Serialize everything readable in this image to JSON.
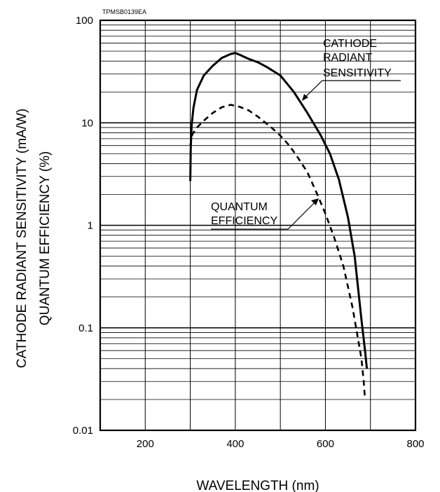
{
  "chart_data": {
    "type": "line",
    "figure_code": "TPMSB0139EA",
    "xlabel": "WAVELENGTH (nm)",
    "ylabel_lines": [
      "CATHODE RADIANT SENSITIVITY (mA/W)",
      "QUANTUM EFFICIENCY (%)"
    ],
    "xlim": [
      100,
      800
    ],
    "ylim": [
      0.01,
      100
    ],
    "yscale": "log",
    "grid": true,
    "x_ticks": [
      200,
      400,
      600,
      800
    ],
    "x_tick_labels": [
      "200",
      "400",
      "600",
      "800"
    ],
    "y_ticks": [
      100,
      10,
      1,
      0.1,
      0.01
    ],
    "y_tick_labels": [
      "100",
      "10",
      "1",
      "0.1",
      "0.01"
    ],
    "series": [
      {
        "name": "CATHODE RADIANT SENSITIVITY",
        "style": "solid",
        "x": [
          300,
          301,
          303,
          307,
          315,
          330,
          350,
          370,
          390,
          400,
          410,
          430,
          450,
          470,
          500,
          530,
          560,
          590,
          610,
          630,
          650,
          665,
          680,
          688,
          692
        ],
        "y": [
          2.7,
          5.5,
          9.5,
          14,
          21,
          29,
          36,
          43,
          47,
          48,
          46,
          42,
          39,
          35,
          29,
          20,
          12.5,
          7.5,
          5,
          2.8,
          1.2,
          0.5,
          0.12,
          0.06,
          0.04
        ]
      },
      {
        "name": "QUANTUM EFFICIENCY",
        "style": "dashed",
        "x": [
          300,
          302,
          305,
          315,
          330,
          350,
          370,
          390,
          410,
          430,
          450,
          480,
          500,
          520,
          540,
          560,
          580,
          600,
          620,
          640,
          660,
          670,
          680,
          685,
          688
        ],
        "y": [
          6,
          7,
          7.8,
          9,
          10.5,
          12.5,
          14.2,
          15,
          14.3,
          13.2,
          11.5,
          9,
          7.5,
          6,
          4.5,
          3.3,
          2.1,
          1.3,
          0.75,
          0.4,
          0.16,
          0.09,
          0.05,
          0.03,
          0.02
        ]
      }
    ],
    "annotations": [
      {
        "lines": [
          "CATHODE",
          "RADIANT",
          "SENSITIVITY"
        ],
        "points_to": [
          580,
          15
        ]
      },
      {
        "lines": [
          "QUANTUM",
          "EFFICIENCY"
        ],
        "points_to": [
          592,
          2
        ]
      }
    ]
  }
}
